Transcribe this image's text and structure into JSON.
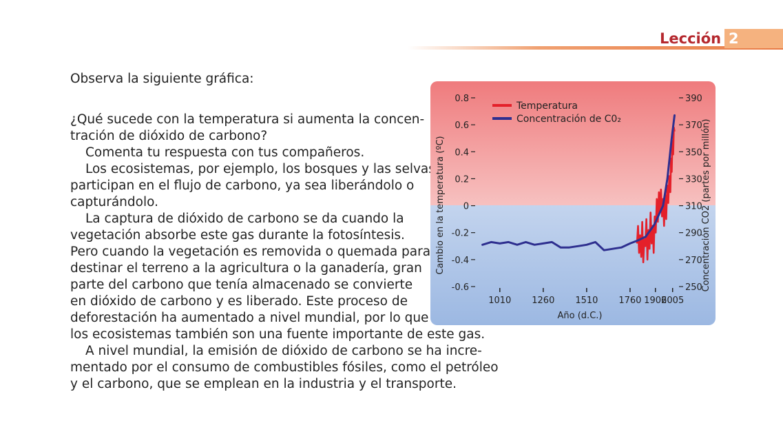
{
  "header": {
    "lesson_label": "Lección",
    "lesson_number": "2"
  },
  "body": {
    "intro": "Observa la siguiente gráfica:",
    "question_line1": "¿Qué sucede con la temperatura si aumenta la concen-",
    "question_line2": "tración de dióxido de carbono?",
    "p1": "Comenta tu respuesta con tus compañeros.",
    "p2_l1": "Los ecosistemas, por ejemplo, los bosques y las selvas,",
    "p2_l2": "participan en el flujo de carbono, ya sea liberándolo o",
    "p2_l3": "capturándolo.",
    "p3_l1": "La captura de dióxido de carbono se da cuando la",
    "p3_l2": "vegetación absorbe este gas durante la fotosíntesis.",
    "p3_l3": "Pero cuando la vegetación es removida o quemada para",
    "p3_l4": "destinar el terreno a la agricultura o la ganadería, gran",
    "p3_l5": "parte del carbono que tenía almacenado se convierte",
    "p3_l6": "en dióxido de carbono y es liberado. Este proceso de",
    "p3_l7": "deforestación ha aumentado a nivel mundial, por lo que",
    "p3_l8": "los ecosistemas también son una fuente importante de este gas.",
    "p4_l1": "A nivel mundial, la emisión de dióxido de carbono se ha incre-",
    "p4_l2": "mentado por el consumo de combustibles fósiles, como el petróleo",
    "p4_l3": "y el carbono, que se emplean en la industria y el transporte."
  },
  "chart_data": {
    "type": "line",
    "title": "",
    "xlabel": "Año (d.C.)",
    "ylabel_left": "Cambio en la temperatura (ºC)",
    "ylabel_right": "Concentración CO2 (partes por millón)",
    "x_tick_labels": [
      "1010",
      "1260",
      "1510",
      "1760",
      "1906",
      "2005"
    ],
    "y_left_ticks": [
      "0.8",
      "0.6",
      "0.4",
      "0.2",
      "0",
      "-0.2",
      "-0.4",
      "-0.6"
    ],
    "y_right_ticks": [
      "390",
      "370",
      "350",
      "330",
      "310",
      "290",
      "270",
      "250"
    ],
    "ylim_left": [
      -0.6,
      0.8
    ],
    "ylim_right": [
      250,
      390
    ],
    "legend_position": "top-left",
    "colors": {
      "temperature": "#e4202a",
      "co2": "#2e2f8f",
      "warm_bg": "#f28d8c",
      "cool_bg": "#a9c4e6"
    },
    "series": [
      {
        "name": "Temperatura",
        "values": [
          [
            1800,
            -0.28
          ],
          [
            1806,
            -0.15
          ],
          [
            1812,
            -0.35
          ],
          [
            1818,
            -0.22
          ],
          [
            1824,
            -0.38
          ],
          [
            1830,
            -0.12
          ],
          [
            1836,
            -0.42
          ],
          [
            1842,
            -0.25
          ],
          [
            1848,
            -0.3
          ],
          [
            1854,
            -0.1
          ],
          [
            1860,
            -0.4
          ],
          [
            1866,
            -0.18
          ],
          [
            1872,
            -0.32
          ],
          [
            1878,
            -0.05
          ],
          [
            1884,
            -0.28
          ],
          [
            1890,
            -0.15
          ],
          [
            1896,
            -0.35
          ],
          [
            1902,
            -0.08
          ],
          [
            1908,
            -0.2
          ],
          [
            1914,
            0.05
          ],
          [
            1920,
            -0.12
          ],
          [
            1926,
            0.1
          ],
          [
            1932,
            -0.05
          ],
          [
            1938,
            0.12
          ],
          [
            1944,
            -0.08
          ],
          [
            1950,
            0.05
          ],
          [
            1956,
            -0.15
          ],
          [
            1962,
            0.08
          ],
          [
            1968,
            -0.1
          ],
          [
            1974,
            0.15
          ],
          [
            1980,
            0.02
          ],
          [
            1986,
            0.22
          ],
          [
            1992,
            0.1
          ],
          [
            1996,
            0.35
          ],
          [
            2000,
            0.25
          ],
          [
            2004,
            0.48
          ],
          [
            2008,
            0.38
          ],
          [
            2012,
            0.58
          ],
          [
            2016,
            0.55
          ]
        ]
      },
      {
        "name": "Concentración de C0₂",
        "values": [
          [
            910,
            281
          ],
          [
            960,
            283
          ],
          [
            1010,
            282
          ],
          [
            1060,
            283
          ],
          [
            1110,
            281
          ],
          [
            1160,
            283
          ],
          [
            1210,
            281
          ],
          [
            1260,
            282
          ],
          [
            1310,
            283
          ],
          [
            1360,
            279
          ],
          [
            1410,
            279
          ],
          [
            1460,
            280
          ],
          [
            1510,
            281
          ],
          [
            1560,
            283
          ],
          [
            1610,
            277
          ],
          [
            1660,
            278
          ],
          [
            1710,
            279
          ],
          [
            1760,
            282
          ],
          [
            1800,
            284
          ],
          [
            1850,
            287
          ],
          [
            1900,
            296
          ],
          [
            1950,
            310
          ],
          [
            1975,
            330
          ],
          [
            2000,
            360
          ],
          [
            2016,
            377
          ]
        ]
      }
    ]
  }
}
